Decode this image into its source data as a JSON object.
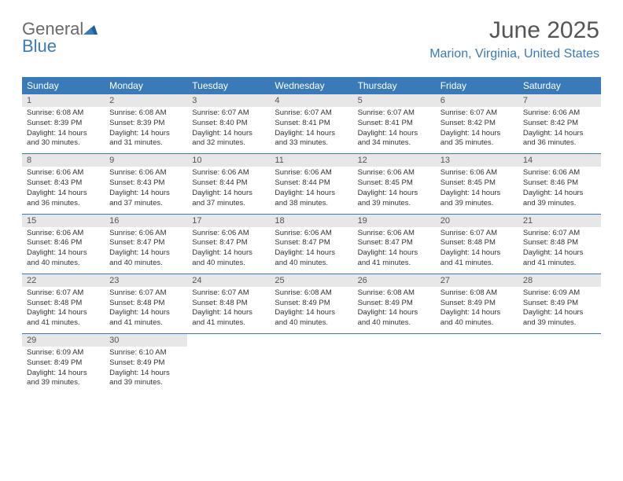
{
  "logo": {
    "text1": "General",
    "text2": "Blue"
  },
  "title": "June 2025",
  "location": "Marion, Virginia, United States",
  "colors": {
    "header_bar": "#3a7ab8",
    "daynum_bg": "#e7e7e7",
    "logo_gray": "#6a6a6a",
    "logo_blue": "#3a7ab8",
    "text": "#333333",
    "background": "#ffffff"
  },
  "fonts": {
    "family": "Arial, Helvetica, sans-serif",
    "title_pt": 30,
    "loc_pt": 16,
    "dayhead_pt": 12,
    "daynum_pt": 11,
    "info_pt": 9.5
  },
  "days_of_week": [
    "Sunday",
    "Monday",
    "Tuesday",
    "Wednesday",
    "Thursday",
    "Friday",
    "Saturday"
  ],
  "weeks": [
    [
      {
        "n": "1",
        "sr": "6:08 AM",
        "ss": "8:39 PM",
        "dl": "14 hours and 30 minutes."
      },
      {
        "n": "2",
        "sr": "6:08 AM",
        "ss": "8:39 PM",
        "dl": "14 hours and 31 minutes."
      },
      {
        "n": "3",
        "sr": "6:07 AM",
        "ss": "8:40 PM",
        "dl": "14 hours and 32 minutes."
      },
      {
        "n": "4",
        "sr": "6:07 AM",
        "ss": "8:41 PM",
        "dl": "14 hours and 33 minutes."
      },
      {
        "n": "5",
        "sr": "6:07 AM",
        "ss": "8:41 PM",
        "dl": "14 hours and 34 minutes."
      },
      {
        "n": "6",
        "sr": "6:07 AM",
        "ss": "8:42 PM",
        "dl": "14 hours and 35 minutes."
      },
      {
        "n": "7",
        "sr": "6:06 AM",
        "ss": "8:42 PM",
        "dl": "14 hours and 36 minutes."
      }
    ],
    [
      {
        "n": "8",
        "sr": "6:06 AM",
        "ss": "8:43 PM",
        "dl": "14 hours and 36 minutes."
      },
      {
        "n": "9",
        "sr": "6:06 AM",
        "ss": "8:43 PM",
        "dl": "14 hours and 37 minutes."
      },
      {
        "n": "10",
        "sr": "6:06 AM",
        "ss": "8:44 PM",
        "dl": "14 hours and 37 minutes."
      },
      {
        "n": "11",
        "sr": "6:06 AM",
        "ss": "8:44 PM",
        "dl": "14 hours and 38 minutes."
      },
      {
        "n": "12",
        "sr": "6:06 AM",
        "ss": "8:45 PM",
        "dl": "14 hours and 39 minutes."
      },
      {
        "n": "13",
        "sr": "6:06 AM",
        "ss": "8:45 PM",
        "dl": "14 hours and 39 minutes."
      },
      {
        "n": "14",
        "sr": "6:06 AM",
        "ss": "8:46 PM",
        "dl": "14 hours and 39 minutes."
      }
    ],
    [
      {
        "n": "15",
        "sr": "6:06 AM",
        "ss": "8:46 PM",
        "dl": "14 hours and 40 minutes."
      },
      {
        "n": "16",
        "sr": "6:06 AM",
        "ss": "8:47 PM",
        "dl": "14 hours and 40 minutes."
      },
      {
        "n": "17",
        "sr": "6:06 AM",
        "ss": "8:47 PM",
        "dl": "14 hours and 40 minutes."
      },
      {
        "n": "18",
        "sr": "6:06 AM",
        "ss": "8:47 PM",
        "dl": "14 hours and 40 minutes."
      },
      {
        "n": "19",
        "sr": "6:06 AM",
        "ss": "8:47 PM",
        "dl": "14 hours and 41 minutes."
      },
      {
        "n": "20",
        "sr": "6:07 AM",
        "ss": "8:48 PM",
        "dl": "14 hours and 41 minutes."
      },
      {
        "n": "21",
        "sr": "6:07 AM",
        "ss": "8:48 PM",
        "dl": "14 hours and 41 minutes."
      }
    ],
    [
      {
        "n": "22",
        "sr": "6:07 AM",
        "ss": "8:48 PM",
        "dl": "14 hours and 41 minutes."
      },
      {
        "n": "23",
        "sr": "6:07 AM",
        "ss": "8:48 PM",
        "dl": "14 hours and 41 minutes."
      },
      {
        "n": "24",
        "sr": "6:07 AM",
        "ss": "8:48 PM",
        "dl": "14 hours and 41 minutes."
      },
      {
        "n": "25",
        "sr": "6:08 AM",
        "ss": "8:49 PM",
        "dl": "14 hours and 40 minutes."
      },
      {
        "n": "26",
        "sr": "6:08 AM",
        "ss": "8:49 PM",
        "dl": "14 hours and 40 minutes."
      },
      {
        "n": "27",
        "sr": "6:08 AM",
        "ss": "8:49 PM",
        "dl": "14 hours and 40 minutes."
      },
      {
        "n": "28",
        "sr": "6:09 AM",
        "ss": "8:49 PM",
        "dl": "14 hours and 39 minutes."
      }
    ],
    [
      {
        "n": "29",
        "sr": "6:09 AM",
        "ss": "8:49 PM",
        "dl": "14 hours and 39 minutes."
      },
      {
        "n": "30",
        "sr": "6:10 AM",
        "ss": "8:49 PM",
        "dl": "14 hours and 39 minutes."
      },
      null,
      null,
      null,
      null,
      null
    ]
  ],
  "labels": {
    "sunrise": "Sunrise: ",
    "sunset": "Sunset: ",
    "daylight": "Daylight: "
  }
}
